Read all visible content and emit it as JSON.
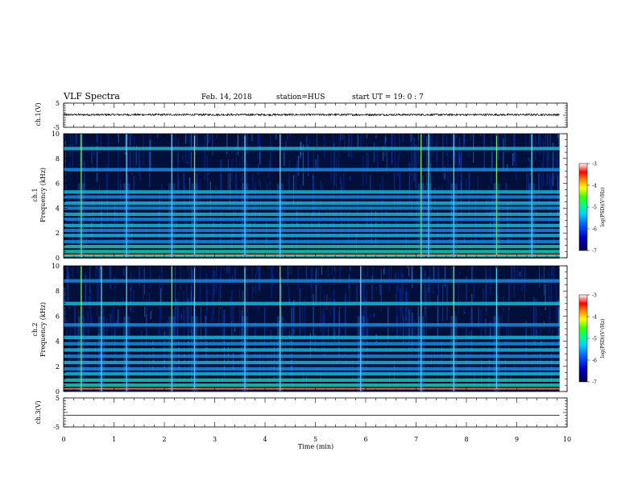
{
  "header": {
    "title": "VLF Spectra",
    "date": "Feb. 14, 2018",
    "station": "station=HUS",
    "start": "start  UT =   19: 0  : 7"
  },
  "chart_data": [
    {
      "type": "line",
      "panel": "ch1-waveform",
      "ylabel": "ch.1(V)",
      "ylim": [
        -5,
        5
      ],
      "ytick_labels": [
        "5",
        "-5"
      ],
      "xlim": [
        0,
        10
      ],
      "series": [
        {
          "values_description": "noise-like signal around",
          "approx_level": 0.2,
          "approx_amplitude": 0.4
        }
      ]
    },
    {
      "type": "heatmap",
      "panel": "ch1-spectrogram",
      "ylabel": "ch.1\nFrequency  (kHz)",
      "ylim": [
        0,
        10
      ],
      "ytick_labels": [
        "0",
        "2",
        "4",
        "6",
        "8",
        "10"
      ],
      "xlim": [
        0,
        10
      ],
      "colorbar": {
        "label": "log(PSD)(V²/Hz)",
        "range": [
          -7,
          -3
        ],
        "tick_labels": [
          "-3",
          "-4",
          "-5",
          "-6",
          "-7"
        ]
      },
      "horizontal_bands_khz": [
        0.2,
        0.5,
        0.9,
        1.3,
        1.8,
        2.2,
        2.6,
        3.1,
        3.5,
        4.0,
        4.4,
        4.9,
        5.3,
        7.1,
        8.8
      ],
      "vertical_events_min": [
        0.35,
        1.25,
        2.15,
        2.6,
        3.6,
        4.3,
        7.1,
        7.25,
        7.75,
        8.6,
        9.3
      ]
    },
    {
      "type": "heatmap",
      "panel": "ch2-spectrogram",
      "ylabel": "ch.2\nFrequency  (kHz)",
      "ylim": [
        0,
        10
      ],
      "ytick_labels": [
        "0",
        "2",
        "4",
        "6",
        "8",
        "10"
      ],
      "xlim": [
        0,
        10
      ],
      "colorbar": {
        "label": "log(PSD)(V²/Hz)",
        "range": [
          -7,
          -3
        ],
        "tick_labels": [
          "-3",
          "-4",
          "-5",
          "-6",
          "-7"
        ]
      },
      "horizontal_bands_khz": [
        0.5,
        0.9,
        1.4,
        1.8,
        2.3,
        2.8,
        3.3,
        3.8,
        4.3,
        5.3,
        7.0,
        8.8
      ],
      "vertical_events_min": [
        0.35,
        0.75,
        1.25,
        2.15,
        2.6,
        3.6,
        4.3,
        5.9,
        7.1,
        7.75,
        8.6
      ]
    },
    {
      "type": "line",
      "panel": "ch3-waveform",
      "ylabel": "ch.3(V)",
      "ylim": [
        -5,
        5
      ],
      "ytick_labels": [
        "5",
        "-5"
      ],
      "xlim": [
        0,
        10
      ],
      "series": [
        {
          "values_description": "flat line",
          "approx_level": -1.0
        }
      ]
    }
  ],
  "xaxis": {
    "label": "Time  (min)",
    "tick_labels": [
      "0",
      "1",
      "2",
      "3",
      "4",
      "5",
      "6",
      "7",
      "8",
      "9",
      "10"
    ]
  }
}
